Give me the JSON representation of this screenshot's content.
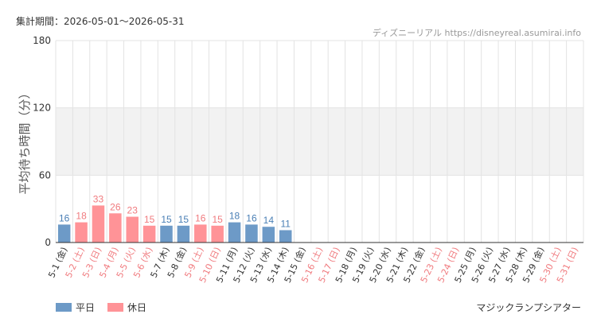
{
  "header": {
    "period": "集計期間：2026-05-01〜2026-05-31",
    "site": "ディズニーリアル https://disneyreal.asumirai.info"
  },
  "colors": {
    "weekday": "#6d9ac7",
    "holiday": "#ff9397",
    "weekday_label": "#4a7fb5",
    "holiday_label": "#f07a7e",
    "band": "#f2f2f2",
    "grid": "#e3e3e3"
  },
  "legend": {
    "weekday": "平日",
    "holiday": "休日"
  },
  "footer": {
    "facility": "マジックランプシアター"
  },
  "chart_data": {
    "type": "bar",
    "ylabel": "平均待ち時間（分）",
    "ylim": [
      0,
      180
    ],
    "yticks": [
      0,
      60,
      120,
      180
    ],
    "shaded_band": [
      60,
      120
    ],
    "categories": [
      "5-1 (金)",
      "5-2 (土)",
      "5-3 (日)",
      "5-4 (月)",
      "5-5 (火)",
      "5-6 (水)",
      "5-7 (木)",
      "5-8 (金)",
      "5-9 (土)",
      "5-10 (日)",
      "5-11 (月)",
      "5-12 (火)",
      "5-13 (水)",
      "5-14 (木)",
      "5-15 (金)",
      "5-16 (土)",
      "5-17 (日)",
      "5-18 (月)",
      "5-19 (火)",
      "5-20 (水)",
      "5-21 (木)",
      "5-22 (金)",
      "5-23 (土)",
      "5-24 (日)",
      "5-25 (月)",
      "5-26 (火)",
      "5-27 (水)",
      "5-28 (木)",
      "5-29 (金)",
      "5-30 (土)",
      "5-31 (日)"
    ],
    "day_type": [
      "weekday",
      "holiday",
      "holiday",
      "holiday",
      "holiday",
      "holiday",
      "weekday",
      "weekday",
      "holiday",
      "holiday",
      "weekday",
      "weekday",
      "weekday",
      "weekday",
      "weekday",
      "holiday",
      "holiday",
      "weekday",
      "weekday",
      "weekday",
      "weekday",
      "weekday",
      "holiday",
      "holiday",
      "weekday",
      "weekday",
      "weekday",
      "weekday",
      "weekday",
      "holiday",
      "holiday"
    ],
    "values": [
      16,
      18,
      33,
      26,
      23,
      15,
      15,
      15,
      16,
      15,
      18,
      16,
      14,
      11,
      null,
      null,
      null,
      null,
      null,
      null,
      null,
      null,
      null,
      null,
      null,
      null,
      null,
      null,
      null,
      null,
      null
    ]
  }
}
